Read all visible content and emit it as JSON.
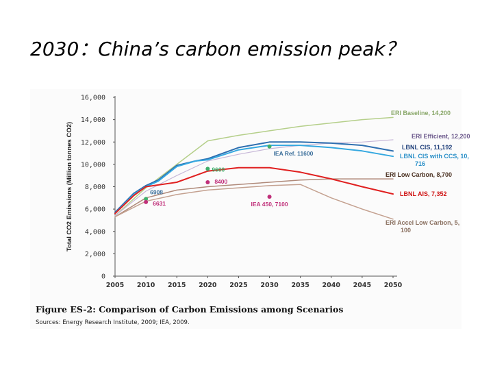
{
  "slide": {
    "title": "2030：China’s carbon emission peak？"
  },
  "figure": {
    "caption": "Figure ES-2: Comparison of Carbon Emissions among Scenarios",
    "source": "Sources: Energy Research Institute, 2009; IEA, 2009."
  },
  "chart_data": {
    "type": "line",
    "title": "",
    "xlabel": "",
    "ylabel": "Total CO2 Emissions (Million tonnes CO2)",
    "xlim": [
      2005,
      2050
    ],
    "ylim": [
      0,
      16000
    ],
    "x_ticks": [
      "2005",
      "2010",
      "2015",
      "2020",
      "2025",
      "2030",
      "2035",
      "2040",
      "2045",
      "2050"
    ],
    "y_ticks": [
      "0",
      "2,000",
      "4,000",
      "6,000",
      "8,000",
      "10,000",
      "12,000",
      "14,000",
      "16,000"
    ],
    "grid": false,
    "legend": "none",
    "series": [
      {
        "name": "ERI Baseline, 14,200",
        "color": "#b5cf8a",
        "width": 1.5,
        "x": [
          2005,
          2010,
          2015,
          2020,
          2025,
          2030,
          2035,
          2040,
          2045,
          2050
        ],
        "y": [
          5400,
          7900,
          10000,
          12100,
          12600,
          13000,
          13400,
          13700,
          14000,
          14200
        ]
      },
      {
        "name": "ERI Efficient, 12,200",
        "color": "#c7b8d8",
        "width": 1.2,
        "x": [
          2005,
          2010,
          2015,
          2020,
          2025,
          2030,
          2035,
          2040,
          2045,
          2050
        ],
        "y": [
          5400,
          7600,
          9000,
          10300,
          10900,
          11400,
          11700,
          11900,
          12000,
          12200
        ]
      },
      {
        "name": "LBNL CIS, 11,192",
        "color": "#2e6fb0",
        "width": 2,
        "x": [
          2005,
          2008,
          2010,
          2012,
          2015,
          2018,
          2020,
          2025,
          2030,
          2035,
          2040,
          2045,
          2050
        ],
        "y": [
          5700,
          7400,
          8100,
          8600,
          9900,
          10300,
          10500,
          11500,
          12000,
          12000,
          11900,
          11700,
          11192
        ]
      },
      {
        "name": "LBNL CIS with CCS, 10,716",
        "color": "#35a8e0",
        "width": 2,
        "x": [
          2005,
          2008,
          2010,
          2012,
          2015,
          2018,
          2020,
          2025,
          2030,
          2035,
          2040,
          2045,
          2050
        ],
        "y": [
          5600,
          7300,
          8000,
          8500,
          9800,
          10300,
          10400,
          11300,
          11700,
          11700,
          11500,
          11200,
          10716
        ]
      },
      {
        "name": "ERI Low Carbon, 8,700",
        "color": "#b08a7a",
        "width": 1.5,
        "x": [
          2005,
          2010,
          2015,
          2020,
          2025,
          2030,
          2035,
          2040,
          2045,
          2050
        ],
        "y": [
          5300,
          7000,
          7700,
          8000,
          8200,
          8400,
          8600,
          8700,
          8700,
          8700
        ]
      },
      {
        "name": "LBNL AIS, 7,352",
        "color": "#e02020",
        "width": 2,
        "x": [
          2005,
          2008,
          2010,
          2015,
          2020,
          2025,
          2030,
          2035,
          2040,
          2045,
          2050
        ],
        "y": [
          5600,
          7200,
          8000,
          8400,
          9400,
          9700,
          9700,
          9300,
          8700,
          8000,
          7352
        ]
      },
      {
        "name": "ERI Accel Low Carbon, 5,100",
        "color": "#c4a190",
        "width": 1.5,
        "x": [
          2005,
          2010,
          2015,
          2020,
          2025,
          2030,
          2035,
          2040,
          2045,
          2050
        ],
        "y": [
          5300,
          6700,
          7300,
          7700,
          7900,
          8100,
          8200,
          7000,
          6000,
          5100
        ]
      }
    ],
    "points": [
      {
        "label": "IEA Ref. 11600",
        "x": 2030,
        "y": 11600,
        "color": "#3fae6b"
      },
      {
        "label": "9600",
        "x": 2020,
        "y": 9600,
        "color": "#3fae6b"
      },
      {
        "label": "8400",
        "x": 2020,
        "y": 8400,
        "color": "#c0307a"
      },
      {
        "label": "6908",
        "x": 2010,
        "y": 6908,
        "color": "#3fae6b"
      },
      {
        "label": "6631",
        "x": 2010,
        "y": 6631,
        "color": "#c0307a"
      },
      {
        "label": "IEA 450, 7100",
        "x": 2030,
        "y": 7100,
        "color": "#c0307a"
      }
    ]
  }
}
